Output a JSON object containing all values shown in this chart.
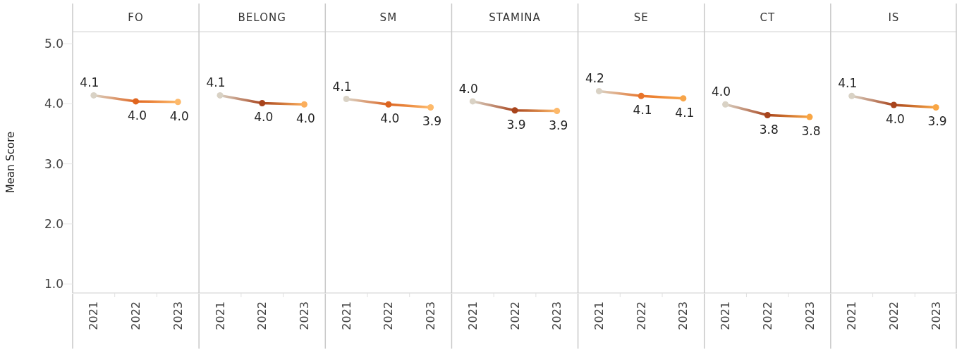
{
  "chart_data": [
    {
      "type": "line",
      "title": "FO",
      "ylabel": "Mean Score",
      "categories": [
        "2021",
        "2022",
        "2023"
      ],
      "ylim": [
        0.85,
        5.2
      ],
      "yticks": [
        {
          "value": 1,
          "label": "1.0"
        },
        {
          "value": 2,
          "label": "2.0"
        },
        {
          "value": 3,
          "label": "3.0"
        },
        {
          "value": 4,
          "label": "4.0"
        },
        {
          "value": 5,
          "label": "5.0"
        }
      ],
      "marker": "circle",
      "series": [
        {
          "colors": [
            "#d9d2c5",
            "#e0651f",
            "#fdb96a"
          ],
          "values": [
            4.14,
            4.04,
            4.03
          ],
          "value_labels": [
            "4.1",
            "4.0",
            "4.0"
          ]
        }
      ]
    },
    {
      "type": "line",
      "title": "BELONG",
      "tick_labels": "x",
      "categories": [
        "2021",
        "2022",
        "2023"
      ],
      "ylim": [
        0.85,
        5.2
      ],
      "marker": "circle",
      "series": [
        {
          "colors": [
            "#d9d2c5",
            "#a8441c",
            "#fbae5c"
          ],
          "values": [
            4.14,
            4.01,
            3.99
          ],
          "value_labels": [
            "4.1",
            "4.0",
            "4.0"
          ]
        }
      ]
    },
    {
      "type": "line",
      "title": "SM",
      "tick_labels": "x",
      "categories": [
        "2021",
        "2022",
        "2023"
      ],
      "ylim": [
        0.85,
        5.2
      ],
      "marker": "circle",
      "series": [
        {
          "colors": [
            "#d9d2c5",
            "#dc6420",
            "#fdb96a"
          ],
          "values": [
            4.08,
            3.99,
            3.94
          ],
          "value_labels": [
            "4.1",
            "4.0",
            "3.9"
          ]
        }
      ]
    },
    {
      "type": "line",
      "title": "STAMINA",
      "tick_labels": "x",
      "categories": [
        "2021",
        "2022",
        "2023"
      ],
      "ylim": [
        0.85,
        5.2
      ],
      "marker": "circle",
      "series": [
        {
          "colors": [
            "#d9d2c5",
            "#a8441c",
            "#fdb96a"
          ],
          "values": [
            4.04,
            3.89,
            3.88
          ],
          "value_labels": [
            "4.0",
            "3.9",
            "3.9"
          ]
        }
      ]
    },
    {
      "type": "line",
      "title": "SE",
      "tick_labels": "x",
      "categories": [
        "2021",
        "2022",
        "2023"
      ],
      "ylim": [
        0.85,
        5.2
      ],
      "marker": "circle",
      "series": [
        {
          "colors": [
            "#d9d2c5",
            "#e8742a",
            "#f7a54a"
          ],
          "values": [
            4.21,
            4.13,
            4.09
          ],
          "value_labels": [
            "4.2",
            "4.1",
            "4.1"
          ]
        }
      ]
    },
    {
      "type": "line",
      "title": "CT",
      "tick_labels": "x",
      "categories": [
        "2021",
        "2022",
        "2023"
      ],
      "ylim": [
        0.85,
        5.2
      ],
      "marker": "circle",
      "series": [
        {
          "colors": [
            "#d9d2c5",
            "#a8441c",
            "#f9a644"
          ],
          "values": [
            3.99,
            3.81,
            3.78
          ],
          "value_labels": [
            "4.0",
            "3.8",
            "3.8"
          ]
        }
      ]
    },
    {
      "type": "line",
      "title": "IS",
      "tick_labels": "x",
      "categories": [
        "2021",
        "2022",
        "2023"
      ],
      "ylim": [
        0.85,
        5.2
      ],
      "marker": "circle",
      "series": [
        {
          "colors": [
            "#d9d2c5",
            "#a8441c",
            "#f9a644"
          ],
          "values": [
            4.13,
            3.98,
            3.94
          ],
          "value_labels": [
            "4.1",
            "4.0",
            "3.9"
          ]
        }
      ]
    }
  ]
}
